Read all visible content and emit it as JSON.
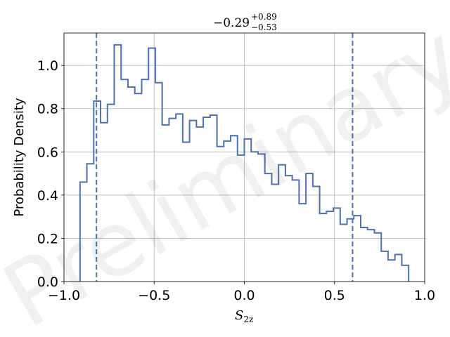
{
  "chart_data": {
    "type": "histogram",
    "title": {
      "value": "−0.29",
      "upper": "+0.89",
      "lower": "−0.53"
    },
    "xlabel": {
      "base": "S",
      "sub": "2z"
    },
    "ylabel": "Probability Density",
    "xlim": [
      -1.0,
      1.0
    ],
    "ylim": [
      0.0,
      1.15
    ],
    "xticks": [
      {
        "value": -1.0,
        "label": "−1.0"
      },
      {
        "value": -0.5,
        "label": "−0.5"
      },
      {
        "value": 0.0,
        "label": "0.0"
      },
      {
        "value": 0.5,
        "label": "0.5"
      },
      {
        "value": 1.0,
        "label": "1.0"
      }
    ],
    "yticks": [
      {
        "value": 0.0,
        "label": "0.0"
      },
      {
        "value": 0.2,
        "label": "0.2"
      },
      {
        "value": 0.4,
        "label": "0.4"
      },
      {
        "value": 0.6,
        "label": "0.6"
      },
      {
        "value": 0.8,
        "label": "0.8"
      },
      {
        "value": 1.0,
        "label": "1.0"
      }
    ],
    "grid": true,
    "color": "#4c72b0",
    "bin_range": [
      -0.911,
      0.911
    ],
    "densities": [
      0.46,
      0.545,
      0.835,
      0.735,
      0.82,
      1.095,
      0.935,
      0.9,
      0.87,
      0.935,
      1.08,
      0.92,
      0.725,
      0.755,
      0.775,
      0.645,
      0.745,
      0.715,
      0.76,
      0.77,
      0.625,
      0.65,
      0.675,
      0.585,
      0.66,
      0.6,
      0.59,
      0.5,
      0.45,
      0.54,
      0.49,
      0.47,
      0.36,
      0.5,
      0.44,
      0.315,
      0.325,
      0.34,
      0.265,
      0.29,
      0.305,
      0.25,
      0.24,
      0.225,
      0.14,
      0.1,
      0.125,
      0.075
    ],
    "quantile_lines": [
      -0.82,
      0.6
    ],
    "watermark": "Preliminary"
  }
}
